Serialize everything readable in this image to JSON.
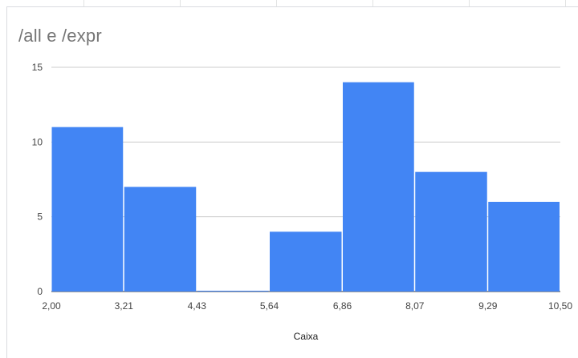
{
  "chart_data": {
    "type": "bar",
    "title": "/all e /expr",
    "xlabel": "Caixa",
    "ylabel": "",
    "bin_edges": [
      2.0,
      3.21,
      4.43,
      5.64,
      6.86,
      8.07,
      9.29,
      10.5
    ],
    "x_tick_labels": [
      "2,00",
      "3,21",
      "4,43",
      "5,64",
      "6,86",
      "8,07",
      "9,29",
      "10,50"
    ],
    "values": [
      11,
      7,
      0,
      4,
      14,
      8,
      6
    ],
    "ylim": [
      0,
      15
    ],
    "y_ticks": [
      0,
      5,
      10,
      15
    ],
    "grid": true,
    "legend": "none",
    "bar_color": "#4285f4"
  }
}
